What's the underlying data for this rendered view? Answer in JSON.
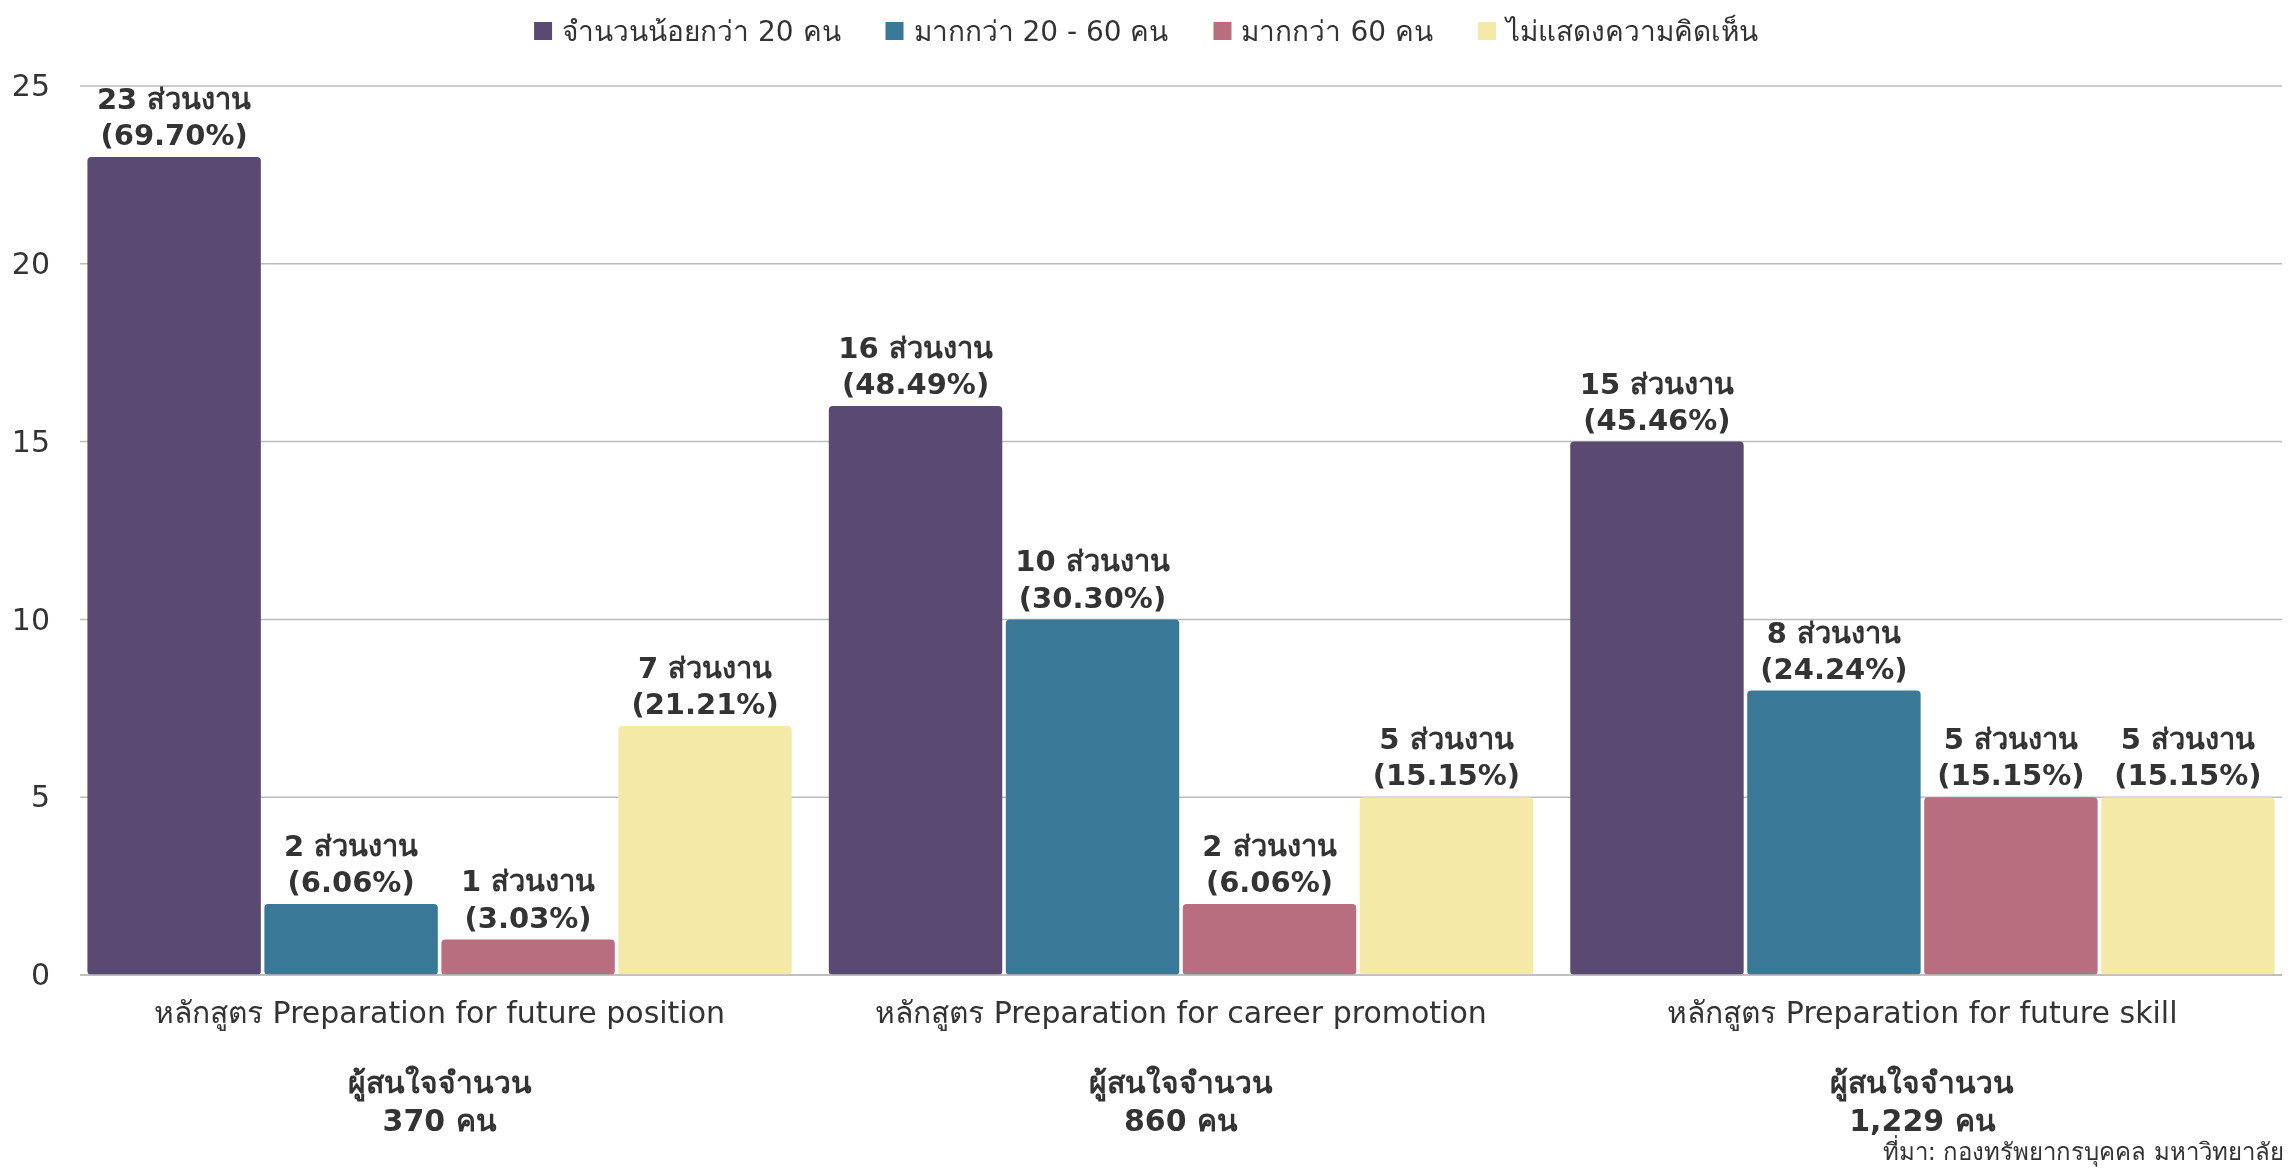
{
  "chart_data": {
    "type": "bar",
    "categories": [
      "หลักสูตร Preparation for future position",
      "หลักสูตร Preparation for career promotion",
      "หลักสูตร Preparation for future skill"
    ],
    "series": [
      {
        "name": "จำนวนน้อยกว่า 20 คน",
        "color": "#5a4a72",
        "values": [
          23,
          16,
          15
        ],
        "value_labels": [
          "23 ส่วนงาน\n(69.70%)",
          "16 ส่วนงาน\n(48.49%)",
          "15 ส่วนงาน\n(45.46%)"
        ]
      },
      {
        "name": "มากกว่า 20 - 60 คน",
        "color": "#3a7898",
        "values": [
          2,
          10,
          8
        ],
        "value_labels": [
          "2 ส่วนงาน\n(6.06%)",
          "10 ส่วนงาน\n(30.30%)",
          "8 ส่วนงาน\n(24.24%)"
        ]
      },
      {
        "name": "มากกว่า 60 คน",
        "color": "#b86e7e",
        "values": [
          1,
          2,
          5
        ],
        "value_labels": [
          "1 ส่วนงาน\n(3.03%)",
          "2 ส่วนงาน\n(6.06%)",
          "5 ส่วนงาน\n(15.15%)"
        ]
      },
      {
        "name": "ไม่แสดงความคิดเห็น",
        "color": "#f5e9a8",
        "values": [
          7,
          5,
          5
        ],
        "value_labels": [
          "7 ส่วนงาน\n(21.21%)",
          "5 ส่วนงาน\n(15.15%)",
          "5 ส่วนงาน\n(15.15%)"
        ]
      }
    ],
    "ylim": [
      0,
      25
    ],
    "yticks": [
      0,
      5,
      10,
      15,
      20,
      25
    ],
    "grid": "y",
    "legend": "top",
    "annotations": [
      "ผู้สนใจจำนวน\n370 คน",
      "ผู้สนใจจำนวน\n860 คน",
      "ผู้สนใจจำนวน\n1,229 คน",
      "ที่มา: กองทรัพยากรบุคคล มหาวิทยาลัย"
    ]
  }
}
